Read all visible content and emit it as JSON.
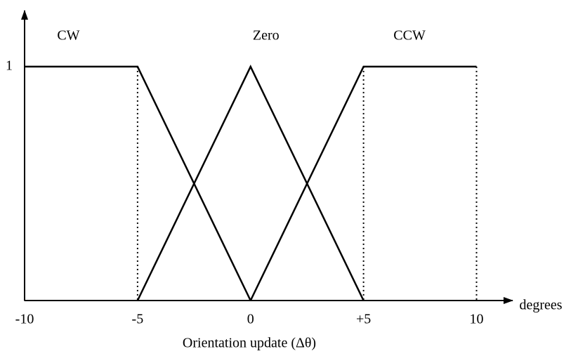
{
  "chart_data": {
    "type": "line",
    "x_unit_label": "degrees",
    "xlabel": "Orientation update (Δθ)",
    "series": [
      {
        "name": "CW",
        "color": "#000000",
        "x": [
          -10,
          -5,
          0
        ],
        "values": [
          1,
          1,
          0
        ]
      },
      {
        "name": "Zero",
        "color": "#000000",
        "x": [
          -5,
          0,
          5
        ],
        "values": [
          0,
          1,
          0
        ]
      },
      {
        "name": "CCW",
        "color": "#000000",
        "x": [
          0,
          5,
          10
        ],
        "values": [
          0,
          1,
          1
        ]
      }
    ],
    "xlim": [
      -10,
      11.6
    ],
    "ylim": [
      0,
      1.24
    ],
    "xticks": [
      -10,
      -5,
      0,
      {
        "value": 5,
        "label": "+5"
      },
      10
    ],
    "yticks": [
      1
    ],
    "grid": false
  }
}
